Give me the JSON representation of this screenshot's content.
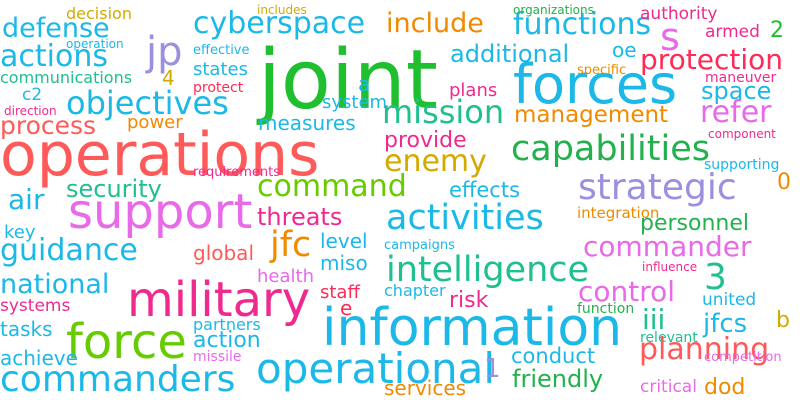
{
  "words": [
    {
      "text": "joint",
      "color": "#1fbf2f"
    },
    {
      "text": "operations",
      "color": "#ff5a5a"
    },
    {
      "text": "forces",
      "color": "#1bb8e8"
    },
    {
      "text": "information",
      "color": "#1bb8e8"
    },
    {
      "text": "military",
      "color": "#ef2a8f"
    },
    {
      "text": "support",
      "color": "#e86ae8"
    },
    {
      "text": "force",
      "color": "#66cc00"
    },
    {
      "text": "operational",
      "color": "#1bb8e8"
    },
    {
      "text": "commanders",
      "color": "#1bb8e8"
    },
    {
      "text": "intelligence",
      "color": "#1fbf8f"
    },
    {
      "text": "capabilities",
      "color": "#22b14c"
    },
    {
      "text": "activities",
      "color": "#1bb8e8"
    },
    {
      "text": "mission",
      "color": "#1fbf8f"
    },
    {
      "text": "objectives",
      "color": "#1bb8e8"
    },
    {
      "text": "strategic",
      "color": "#9b8fe0"
    },
    {
      "text": "command",
      "color": "#66cc00"
    },
    {
      "text": "enemy",
      "color": "#d4aa00"
    },
    {
      "text": "planning",
      "color": "#ff5a5a"
    },
    {
      "text": "cyberspace",
      "color": "#1bb8e8"
    },
    {
      "text": "guidance",
      "color": "#1bb8e8"
    },
    {
      "text": "commander",
      "color": "#e86ae8"
    },
    {
      "text": "functions",
      "color": "#1bb8e8"
    },
    {
      "text": "actions",
      "color": "#1bb8e8"
    },
    {
      "text": "defense",
      "color": "#1bb8e8"
    },
    {
      "text": "include",
      "color": "#f08a00"
    },
    {
      "text": "protection",
      "color": "#ff2a55"
    },
    {
      "text": "jfc",
      "color": "#f08a00"
    },
    {
      "text": "control",
      "color": "#e86ae8"
    },
    {
      "text": "management",
      "color": "#f08a00"
    },
    {
      "text": "national",
      "color": "#1bb8e8"
    },
    {
      "text": "refer",
      "color": "#e86ae8"
    },
    {
      "text": "jp",
      "color": "#9b8fe0"
    },
    {
      "text": "s",
      "color": "#e86ae8"
    },
    {
      "text": "3",
      "color": "#1fbf8f"
    },
    {
      "text": "additional",
      "color": "#1bb8e8"
    },
    {
      "text": "air",
      "color": "#1bb8e8"
    },
    {
      "text": "process",
      "color": "#ff5a5a"
    },
    {
      "text": "security",
      "color": "#1fbf8f"
    },
    {
      "text": "threats",
      "color": "#ef2a8f"
    },
    {
      "text": "space",
      "color": "#1bb8e8"
    },
    {
      "text": "friendly",
      "color": "#22b14c"
    },
    {
      "text": "personnel",
      "color": "#22b14c"
    },
    {
      "text": "provide",
      "color": "#ef2a8f"
    },
    {
      "text": "iii",
      "color": "#1fbf8f"
    },
    {
      "text": "jfcs",
      "color": "#1bb8e8"
    },
    {
      "text": "conduct",
      "color": "#1bb8e8"
    },
    {
      "text": "effects",
      "color": "#1bb8e8"
    },
    {
      "text": "action",
      "color": "#1bb8e8"
    },
    {
      "text": "risk",
      "color": "#ef2a8f"
    },
    {
      "text": "plans",
      "color": "#ef2a8f"
    },
    {
      "text": "measures",
      "color": "#1bb8e8"
    },
    {
      "text": "level",
      "color": "#1bb8e8"
    },
    {
      "text": "miso",
      "color": "#1bb8e8"
    },
    {
      "text": "states",
      "color": "#1bb8e8"
    },
    {
      "text": "system",
      "color": "#1bb8e8"
    },
    {
      "text": "key",
      "color": "#1bb8e8"
    },
    {
      "text": "global",
      "color": "#ff5a5a"
    },
    {
      "text": "services",
      "color": "#f08a00"
    },
    {
      "text": "tasks",
      "color": "#1bb8e8"
    },
    {
      "text": "achieve",
      "color": "#1bb8e8"
    },
    {
      "text": "systems",
      "color": "#ef2a8f"
    },
    {
      "text": "health",
      "color": "#e86ae8"
    },
    {
      "text": "staff",
      "color": "#ff2a55"
    },
    {
      "text": "power",
      "color": "#f08a00"
    },
    {
      "text": "integration",
      "color": "#f08a00"
    },
    {
      "text": "decision",
      "color": "#d4aa00"
    },
    {
      "text": "communications",
      "color": "#1fbf8f"
    },
    {
      "text": "united",
      "color": "#1bb8e8"
    },
    {
      "text": "critical",
      "color": "#e86ae8"
    },
    {
      "text": "dod",
      "color": "#f08a00"
    },
    {
      "text": "armed",
      "color": "#ef2a8f"
    },
    {
      "text": "authority",
      "color": "#ef2a8f"
    },
    {
      "text": "oe",
      "color": "#1bb8e8"
    },
    {
      "text": "2",
      "color": "#1fbf2f"
    },
    {
      "text": "4",
      "color": "#d4aa00"
    },
    {
      "text": "c2",
      "color": "#1bb8e8"
    },
    {
      "text": "a",
      "color": "#1bb8e8"
    },
    {
      "text": "e",
      "color": "#ff2a55"
    },
    {
      "text": "1",
      "color": "#9b8fe0"
    },
    {
      "text": "0",
      "color": "#f08a00"
    },
    {
      "text": "b",
      "color": "#d4aa00"
    },
    {
      "text": "protect",
      "color": "#ff2a55"
    },
    {
      "text": "direction",
      "color": "#ef2a8f"
    },
    {
      "text": "partners",
      "color": "#1bb8e8"
    },
    {
      "text": "missile",
      "color": "#e86ae8"
    },
    {
      "text": "chapter",
      "color": "#1bb8e8"
    },
    {
      "text": "function",
      "color": "#22b14c"
    },
    {
      "text": "relevant",
      "color": "#1fbf8f"
    },
    {
      "text": "competition",
      "color": "#e86ae8"
    },
    {
      "text": "influence",
      "color": "#ef2a8f"
    },
    {
      "text": "component",
      "color": "#ef2a8f"
    },
    {
      "text": "supporting",
      "color": "#1bb8e8"
    },
    {
      "text": "maneuver",
      "color": "#ef2a8f"
    },
    {
      "text": "specific",
      "color": "#f08a00"
    },
    {
      "text": "organizations",
      "color": "#22b14c"
    },
    {
      "text": "includes",
      "color": "#d4aa00"
    },
    {
      "text": "effective",
      "color": "#1bb8e8"
    },
    {
      "text": "operation",
      "color": "#1bb8e8"
    },
    {
      "text": "requirements",
      "color": "#ef2a8f"
    },
    {
      "text": "campaigns",
      "color": "#1bb8e8"
    }
  ]
}
